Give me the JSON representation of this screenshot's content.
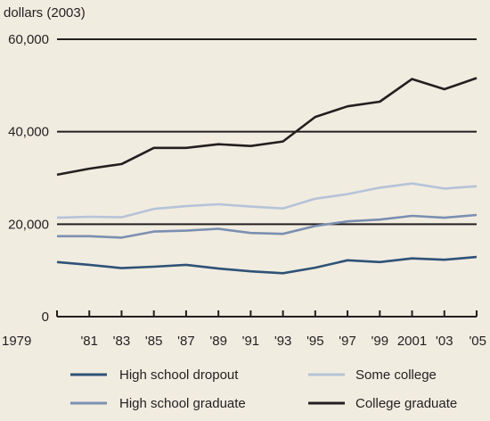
{
  "chart_data": {
    "type": "line",
    "unit_label": "dollars (2003)",
    "x": [
      "1979",
      "'81",
      "'83",
      "'85",
      "'87",
      "'89",
      "'91",
      "'93",
      "'95",
      "'97",
      "'99",
      "2001",
      "'03",
      "'05"
    ],
    "y_ticks": [
      "0",
      "20,000",
      "40,000",
      "60,000"
    ],
    "y_tick_values": [
      0,
      20000,
      40000,
      60000
    ],
    "ylim": [
      0,
      60000
    ],
    "grid": "horizontal at 20,000, 40,000 and 60,000",
    "legend_position": "bottom",
    "series": [
      {
        "name": "High school dropout",
        "color": "#2f5277",
        "values": [
          11800,
          11200,
          10500,
          10800,
          11200,
          10400,
          9800,
          9400,
          10600,
          12200,
          11800,
          12600,
          12300,
          12900
        ]
      },
      {
        "name": "High school graduate",
        "color": "#7b8fb1",
        "values": [
          17400,
          17400,
          17100,
          18400,
          18600,
          19000,
          18100,
          17900,
          19600,
          20600,
          21000,
          21800,
          21400,
          22000
        ]
      },
      {
        "name": "Some college",
        "color": "#b5c3d8",
        "values": [
          21400,
          21600,
          21500,
          23300,
          23900,
          24300,
          23800,
          23400,
          25500,
          26500,
          27900,
          28800,
          27700,
          28200
        ]
      },
      {
        "name": "College graduate",
        "color": "#231f20",
        "values": [
          30700,
          32000,
          33000,
          36500,
          36500,
          37300,
          36900,
          37900,
          43200,
          45500,
          46500,
          51400,
          49200,
          51600
        ]
      }
    ]
  }
}
